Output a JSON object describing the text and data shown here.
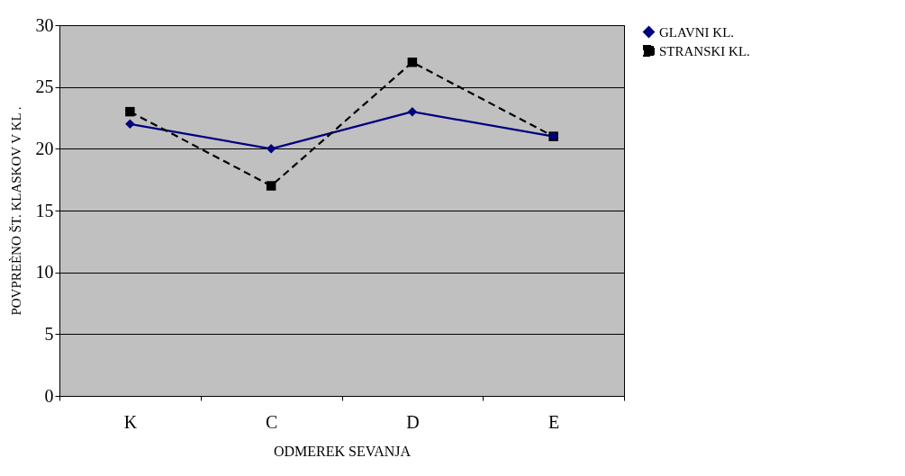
{
  "chart_data": {
    "type": "line",
    "xlabel": "ODMEREK SEVANJA",
    "ylabel": "POVPREÈNO ŠT. KLASKOV V KL .",
    "categories": [
      "K",
      "C",
      "D",
      "E"
    ],
    "ylim": [
      0,
      30
    ],
    "yticks": [
      0,
      5,
      10,
      15,
      20,
      25,
      30
    ],
    "grid": "y",
    "legend": "right",
    "series": [
      {
        "name": "GLAVNI KL.",
        "color": "#000080",
        "values": [
          22,
          20,
          23,
          21
        ],
        "marker": "diamond",
        "line_style": "solid"
      },
      {
        "name": "STRANSKI KL.",
        "color": "#000000",
        "values": [
          23,
          17,
          27,
          21
        ],
        "marker": "square",
        "line_style": "dashed"
      }
    ]
  }
}
